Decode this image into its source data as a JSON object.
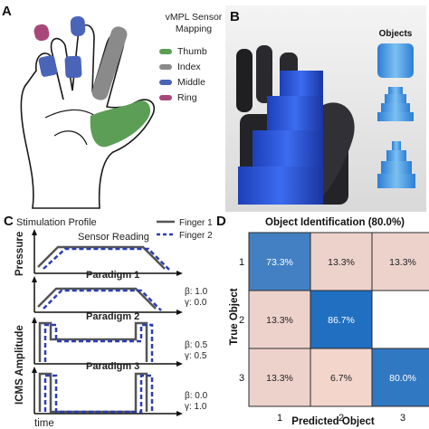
{
  "panel_a": {
    "letter": "A",
    "legend_title": "vMPL Sensor Mapping",
    "legend": [
      {
        "label": "Thumb",
        "color": "#5c9e55"
      },
      {
        "label": "Index",
        "color": "#8a8a8a"
      },
      {
        "label": "Middle",
        "color": "#4a64b8"
      },
      {
        "label": "Ring",
        "color": "#a8487a"
      }
    ]
  },
  "panel_b": {
    "letter": "B",
    "objects_label": "Objects"
  },
  "panel_c": {
    "letter": "C",
    "title": "Stimulation Profile",
    "sensor_reading": "Sensor Reading",
    "legend": [
      {
        "label": "Finger 1",
        "style": "solid",
        "color": "#555555"
      },
      {
        "label": "Finger 2",
        "style": "dashed",
        "color": "#2b3fb0"
      }
    ],
    "ylabel_top": "Pressure",
    "ylabel_bottom": "ICMS Amplitude",
    "xlabel": "time",
    "paradigms": [
      {
        "label": "Paradigm 1",
        "beta": "β: 1.0",
        "gamma": "γ: 0.0"
      },
      {
        "label": "Paradigm 2",
        "beta": "β: 0.5",
        "gamma": "γ: 0.5"
      },
      {
        "label": "Paradigm 3",
        "beta": "β: 0.0",
        "gamma": "γ: 1.0"
      }
    ]
  },
  "panel_d": {
    "letter": "D"
  },
  "chart_data": {
    "type": "heatmap",
    "title": "Object Identification (80.0%)",
    "xlabel": "Predicted Object",
    "ylabel": "True Object",
    "x_categories": [
      "1",
      "2",
      "3"
    ],
    "y_categories": [
      "1",
      "2",
      "3"
    ],
    "cells": [
      [
        {
          "label": "73.3%",
          "value": 73.3
        },
        {
          "label": "13.3%",
          "value": 13.3
        },
        {
          "label": "13.3%",
          "value": 13.3
        }
      ],
      [
        {
          "label": "13.3%",
          "value": 13.3
        },
        {
          "label": "86.7%",
          "value": 86.7
        },
        {
          "label": "",
          "value": 0
        }
      ],
      [
        {
          "label": "13.3%",
          "value": 13.3
        },
        {
          "label": "6.7%",
          "value": 6.7
        },
        {
          "label": "80.0%",
          "value": 80.0
        }
      ]
    ],
    "colors": {
      "high": "#1f6fc1",
      "low": "#f5d6cc",
      "zero": "#ffffff"
    }
  }
}
